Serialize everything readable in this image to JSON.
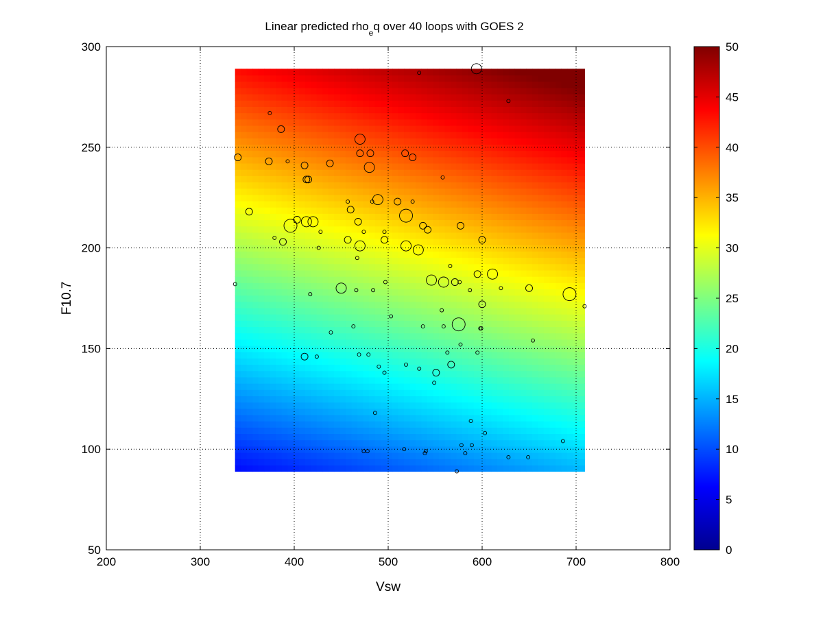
{
  "chart_data": {
    "type": "heatmap",
    "title_main": "Linear predicted rho",
    "title_sub": "e",
    "title_rest": "q over 40 loops with GOES 2",
    "xlabel": "Vsw",
    "ylabel": "F10.7",
    "xlim": [
      200,
      800
    ],
    "ylim": [
      50,
      300
    ],
    "xticks": [
      "200",
      "300",
      "400",
      "500",
      "600",
      "700",
      "800"
    ],
    "yticks": [
      "50",
      "100",
      "150",
      "200",
      "250",
      "300"
    ],
    "grid": true,
    "colormap": "jet",
    "colorbar": {
      "clim": [
        0,
        50
      ],
      "ticks": [
        "0",
        "5",
        "10",
        "15",
        "20",
        "25",
        "30",
        "35",
        "40",
        "45",
        "50"
      ]
    },
    "field": {
      "x_range": [
        337,
        709
      ],
      "y_range": [
        89,
        289
      ],
      "model": "linear",
      "intercept": -17.5,
      "coef_vsw": 0.0229,
      "coef_f107": 0.184
    },
    "points": [
      [
        533,
        287,
        1
      ],
      [
        594,
        289,
        3
      ],
      [
        628,
        273,
        1
      ],
      [
        374,
        267,
        1
      ],
      [
        386,
        259,
        2
      ],
      [
        340,
        245,
        2
      ],
      [
        373,
        243,
        2
      ],
      [
        393,
        243,
        1
      ],
      [
        411,
        241,
        2
      ],
      [
        438,
        242,
        2
      ],
      [
        470,
        254,
        3
      ],
      [
        470,
        247,
        2
      ],
      [
        481,
        247,
        2
      ],
      [
        480,
        240,
        3
      ],
      [
        518,
        247,
        2
      ],
      [
        526,
        245,
        2
      ],
      [
        413,
        234,
        2
      ],
      [
        415,
        234,
        2
      ],
      [
        558,
        235,
        1
      ],
      [
        352,
        218,
        2
      ],
      [
        457,
        223,
        1
      ],
      [
        460,
        219,
        2
      ],
      [
        483,
        223,
        1
      ],
      [
        489,
        224,
        3
      ],
      [
        510,
        223,
        2
      ],
      [
        526,
        223,
        1
      ],
      [
        519,
        216,
        4
      ],
      [
        403,
        214,
        2
      ],
      [
        396,
        211,
        4
      ],
      [
        413,
        213,
        3
      ],
      [
        420,
        213,
        3
      ],
      [
        428,
        208,
        1
      ],
      [
        468,
        213,
        2
      ],
      [
        474,
        208,
        1
      ],
      [
        496,
        208,
        1
      ],
      [
        537,
        211,
        2
      ],
      [
        542,
        209,
        2
      ],
      [
        577,
        211,
        2
      ],
      [
        379,
        205,
        1
      ],
      [
        388,
        203,
        2
      ],
      [
        426,
        200,
        1
      ],
      [
        457,
        204,
        2
      ],
      [
        470,
        201,
        3
      ],
      [
        496,
        204,
        2
      ],
      [
        519,
        201,
        3
      ],
      [
        532,
        199,
        3
      ],
      [
        600,
        204,
        2
      ],
      [
        467,
        195,
        1
      ],
      [
        566,
        191,
        1
      ],
      [
        595,
        187,
        2
      ],
      [
        611,
        187,
        3
      ],
      [
        337,
        182,
        1
      ],
      [
        417,
        177,
        1
      ],
      [
        450,
        180,
        3
      ],
      [
        466,
        179,
        1
      ],
      [
        484,
        179,
        1
      ],
      [
        497,
        183,
        1
      ],
      [
        546,
        184,
        3
      ],
      [
        559,
        183,
        3
      ],
      [
        571,
        183,
        2
      ],
      [
        576,
        183,
        1
      ],
      [
        587,
        179,
        1
      ],
      [
        620,
        180,
        1
      ],
      [
        650,
        180,
        2
      ],
      [
        693,
        177,
        4
      ],
      [
        709,
        171,
        1
      ],
      [
        600,
        172,
        2
      ],
      [
        503,
        166,
        1
      ],
      [
        557,
        169,
        1
      ],
      [
        575,
        162,
        4
      ],
      [
        439,
        158,
        1
      ],
      [
        463,
        161,
        1
      ],
      [
        537,
        161,
        1
      ],
      [
        559,
        161,
        1
      ],
      [
        598,
        160,
        1
      ],
      [
        599,
        160,
        1
      ],
      [
        654,
        154,
        1
      ],
      [
        577,
        152,
        1
      ],
      [
        411,
        146,
        2
      ],
      [
        424,
        146,
        1
      ],
      [
        469,
        147,
        1
      ],
      [
        479,
        147,
        1
      ],
      [
        563,
        148,
        1
      ],
      [
        595,
        148,
        1
      ],
      [
        519,
        142,
        1
      ],
      [
        490,
        141,
        1
      ],
      [
        533,
        140,
        1
      ],
      [
        567,
        142,
        2
      ],
      [
        496,
        138,
        1
      ],
      [
        551,
        138,
        2
      ],
      [
        549,
        133,
        1
      ],
      [
        486,
        118,
        1
      ],
      [
        588,
        114,
        1
      ],
      [
        603,
        108,
        1
      ],
      [
        686,
        104,
        1
      ],
      [
        474,
        99,
        1
      ],
      [
        478,
        99,
        1
      ],
      [
        517,
        100,
        1
      ],
      [
        540,
        99,
        1
      ],
      [
        539,
        98,
        1
      ],
      [
        578,
        102,
        1
      ],
      [
        589,
        102,
        1
      ],
      [
        582,
        98,
        1
      ],
      [
        628,
        96,
        1
      ],
      [
        649,
        96,
        1
      ],
      [
        573,
        89,
        1
      ]
    ]
  }
}
